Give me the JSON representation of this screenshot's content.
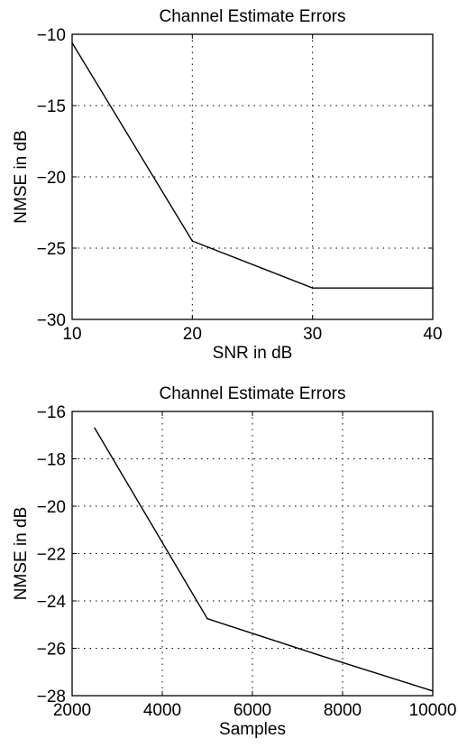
{
  "chart_data": [
    {
      "type": "line",
      "title": "Channel Estimate Errors",
      "xlabel": "SNR in dB",
      "ylabel": "NMSE in dB",
      "xlim": [
        10,
        40
      ],
      "ylim": [
        -30,
        -10
      ],
      "xticks": [
        10,
        20,
        30,
        40
      ],
      "yticks": [
        -30,
        -25,
        -20,
        -15,
        -10
      ],
      "xtick_labels": [
        "10",
        "20",
        "30",
        "40"
      ],
      "ytick_labels": [
        "−30",
        "−25",
        "−20",
        "−15",
        "−10"
      ],
      "grid": true,
      "series": [
        {
          "x": [
            10,
            20,
            30,
            40
          ],
          "y": [
            -10.6,
            -24.5,
            -27.8,
            -27.8
          ]
        }
      ]
    },
    {
      "type": "line",
      "title": "Channel Estimate Errors",
      "xlabel": "Samples",
      "ylabel": "NMSE in dB",
      "xlim": [
        2000,
        10000
      ],
      "ylim": [
        -28,
        -16
      ],
      "xticks": [
        2000,
        4000,
        6000,
        8000,
        10000
      ],
      "yticks": [
        -28,
        -26,
        -24,
        -22,
        -20,
        -18,
        -16
      ],
      "xtick_labels": [
        "2000",
        "4000",
        "6000",
        "8000",
        "10000"
      ],
      "ytick_labels": [
        "−28",
        "−26",
        "−24",
        "−22",
        "−20",
        "−18",
        "−16"
      ],
      "grid": true,
      "series": [
        {
          "x": [
            2500,
            5000,
            7500,
            10000
          ],
          "y": [
            -16.7,
            -24.75,
            -26.3,
            -27.8
          ]
        }
      ]
    }
  ]
}
